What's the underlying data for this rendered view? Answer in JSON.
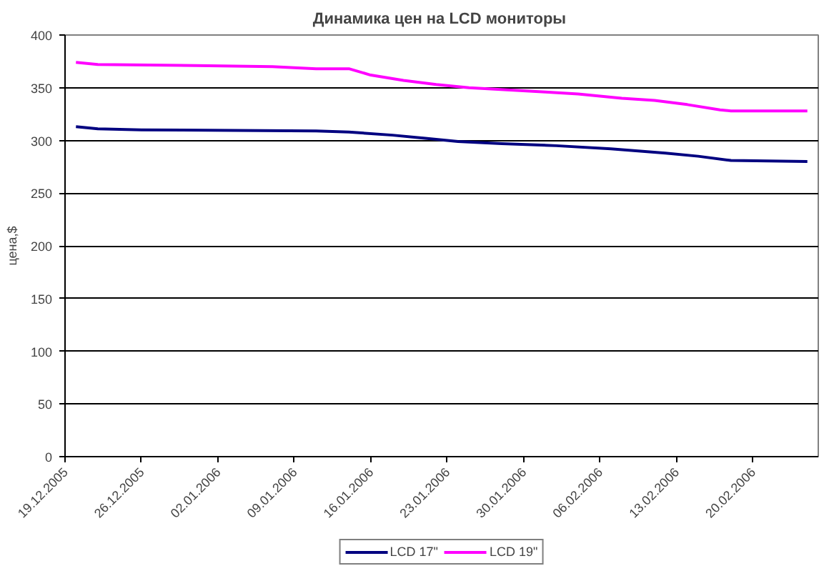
{
  "chart_data": {
    "type": "line",
    "title": "Динамика цен на  LCD мониторы",
    "ylabel": "цена,$",
    "series": [
      {
        "name": "LCD 17\"",
        "color": "#000080",
        "x": [
          "2005-12-20",
          "2005-12-22",
          "2005-12-26",
          "2006-01-11",
          "2006-01-14",
          "2006-01-18",
          "2006-01-21",
          "2006-01-24",
          "2006-01-28",
          "2006-02-02",
          "2006-02-07",
          "2006-02-12",
          "2006-02-15",
          "2006-02-18",
          "2006-02-25"
        ],
        "values": [
          313,
          311,
          310,
          309,
          308,
          305,
          302,
          299,
          297,
          295,
          292,
          288,
          285,
          281,
          280
        ]
      },
      {
        "name": "LCD 19\"",
        "color": "#ff00ff",
        "x": [
          "2005-12-20",
          "2005-12-22",
          "2005-12-31",
          "2006-01-07",
          "2006-01-11",
          "2006-01-14",
          "2006-01-16",
          "2006-01-19",
          "2006-01-22",
          "2006-01-25",
          "2006-02-01",
          "2006-02-04",
          "2006-02-08",
          "2006-02-11",
          "2006-02-14",
          "2006-02-17",
          "2006-02-18",
          "2006-02-25"
        ],
        "values": [
          374,
          372,
          371,
          370,
          368,
          368,
          362,
          357,
          353,
          350,
          346,
          344,
          340,
          338,
          334,
          329,
          328,
          328
        ]
      }
    ],
    "xlim": [
      "2005-12-19",
      "2006-02-26"
    ],
    "xticks": [
      {
        "value": "2005-12-19",
        "label": "19.12.2005"
      },
      {
        "value": "2005-12-26",
        "label": "26.12.2005"
      },
      {
        "value": "2006-01-02",
        "label": "02.01.2006"
      },
      {
        "value": "2006-01-09",
        "label": "09.01.2006"
      },
      {
        "value": "2006-01-16",
        "label": "16.01.2006"
      },
      {
        "value": "2006-01-23",
        "label": "23.01.2006"
      },
      {
        "value": "2006-01-30",
        "label": "30.01.2006"
      },
      {
        "value": "2006-02-06",
        "label": "06.02.2006"
      },
      {
        "value": "2006-02-13",
        "label": "13.02.2006"
      },
      {
        "value": "2006-02-20",
        "label": "20.02.2006"
      }
    ],
    "ylim": [
      0,
      400
    ],
    "yticks": [
      0,
      50,
      100,
      150,
      200,
      250,
      300,
      350,
      400
    ],
    "grid": "y",
    "legend": "bottom",
    "marker": "none",
    "line_style": "solid"
  }
}
